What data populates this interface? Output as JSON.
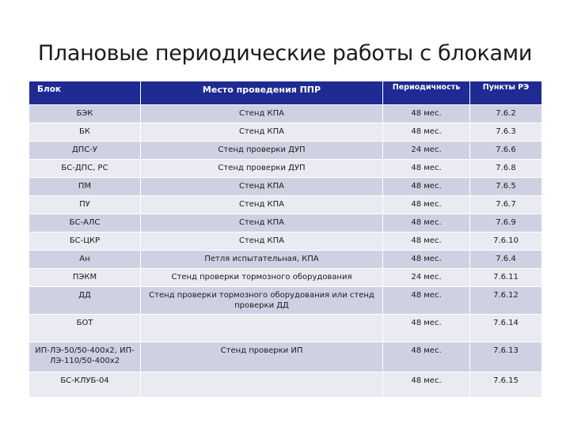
{
  "title": "Плановые периодические работы с блоками",
  "table": {
    "headers": [
      "Блок",
      "Место проведения ППР",
      "Периодичность",
      "Пункты РЭ"
    ],
    "rows": [
      [
        "БЭК",
        "Стенд КПА",
        "48 мес.",
        "7.6.2"
      ],
      [
        "БК",
        "Стенд КПА",
        "48 мес.",
        "7.6.3"
      ],
      [
        "ДПС-У",
        "Стенд проверки ДУП",
        "24 мес.",
        "7.6.6"
      ],
      [
        "БС-ДПС, РС",
        "Стенд проверки ДУП",
        "48 мес.",
        "7.6.8"
      ],
      [
        "ПМ",
        "Стенд КПА",
        "48 мес.",
        "7.6.5"
      ],
      [
        "ПУ",
        "Стенд КПА",
        "48 мес.",
        "7.6.7"
      ],
      [
        "БС-АЛС",
        "Стенд КПА",
        "48 мес.",
        "7.6.9"
      ],
      [
        "БС-ЦКР",
        "Стенд КПА",
        "48 мес.",
        "7.6.10"
      ],
      [
        "Ан",
        "Петля испытательная, КПА",
        "48 мес.",
        "7.6.4"
      ],
      [
        "ПЭКМ",
        "Стенд проверки тормозного оборудования",
        "24 мес.",
        "7.6.11"
      ],
      [
        "ДД",
        "Стенд проверки тормозного оборудования или стенд проверки ДД",
        "48 мес.",
        "7.6.12"
      ],
      [
        "БОТ",
        "",
        "48 мес.",
        "7.6.14"
      ],
      [
        "ИП-ЛЭ-50/50-400х2, ИП-ЛЭ-110/50-400х2",
        "Стенд проверки ИП",
        "48 мес.",
        "7.6.13"
      ],
      [
        "БС-КЛУБ-04",
        "",
        "48 мес.",
        "7.6.15"
      ]
    ]
  }
}
